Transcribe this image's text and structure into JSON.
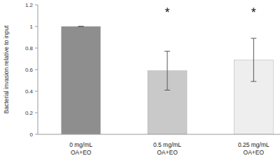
{
  "chart_data": {
    "type": "bar",
    "y_label": "Bacterial invasion relative to input",
    "categories": [
      "0 mg/mL OA+EO",
      "0.5 mg/mL OA+EO",
      "0.25 mg/mL OA+EO"
    ],
    "values": [
      1.0,
      0.59,
      0.69
    ],
    "errors": [
      0,
      0.18,
      0.2
    ],
    "significance": [
      null,
      "*",
      "*"
    ],
    "colors": [
      "#8e8e8e",
      "#c9c9c9",
      "#eeeeee"
    ],
    "ylim": [
      0,
      1.2
    ],
    "yticks": [
      0,
      0.2,
      0.4,
      0.6,
      0.8,
      1,
      1.2
    ],
    "grid": false
  }
}
